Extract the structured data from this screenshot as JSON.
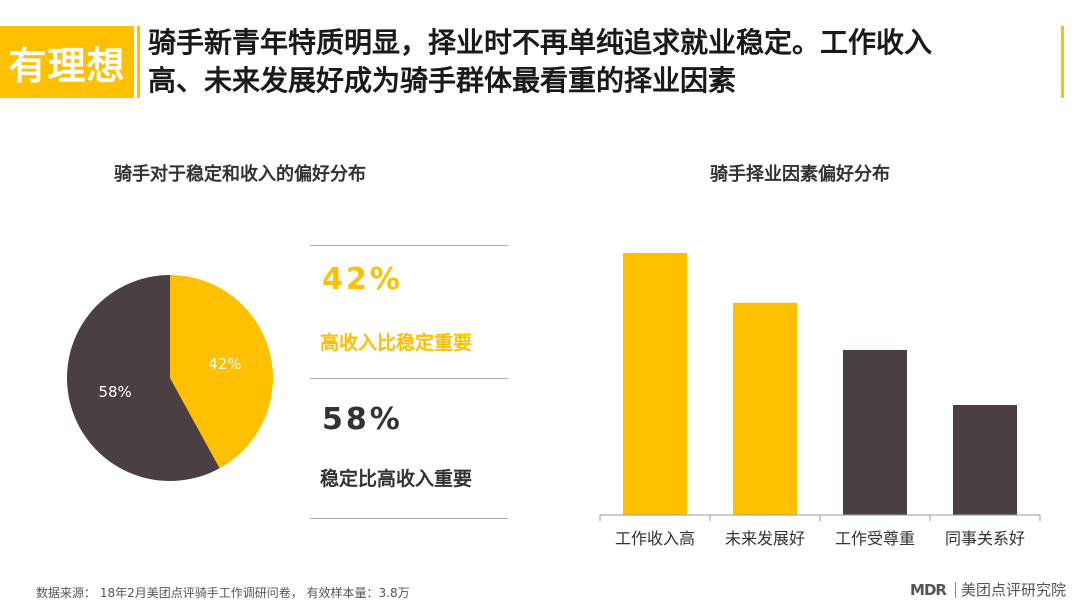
{
  "header": {
    "tag": "有理想",
    "title_line1": "骑手新青年特质明显，择业时不再单纯追求就业稳定。工作收入",
    "title_line2": "高、未来发展好成为骑手群体最看重的择业因素"
  },
  "colors": {
    "accent": "#FFC000",
    "dark": "#4A3F42"
  },
  "chart_data": [
    {
      "type": "pie",
      "title": "骑手对于稳定和收入的偏好分布",
      "slices": [
        {
          "label": "高收入比稳定重要",
          "value": 42,
          "display": "42%",
          "color": "#FFC000"
        },
        {
          "label": "稳定比高收入重要",
          "value": 58,
          "display": "58%",
          "color": "#4A3F42"
        }
      ]
    },
    {
      "type": "bar",
      "title": "骑手择业因素偏好分布",
      "categories": [
        "工作收入高",
        "未来发展好",
        "工作受尊重",
        "同事关系好"
      ],
      "values": [
        100,
        81,
        63,
        42
      ],
      "colors": [
        "#FFC000",
        "#FFC000",
        "#4A3F42",
        "#4A3F42"
      ],
      "ylim": [
        0,
        100
      ],
      "grid": false,
      "y_axis_shown": false
    }
  ],
  "legend": {
    "a_pct": "42%",
    "a_label": "高收入比稳定重要",
    "b_pct": "58%",
    "b_label": "稳定比高收入重要"
  },
  "footer": {
    "source": "数据来源： 18年2月美团点评骑手工作调研问卷， 有效样本量：3.8万",
    "brand_mark": "MDR",
    "brand_name": "美团点评研究院"
  }
}
